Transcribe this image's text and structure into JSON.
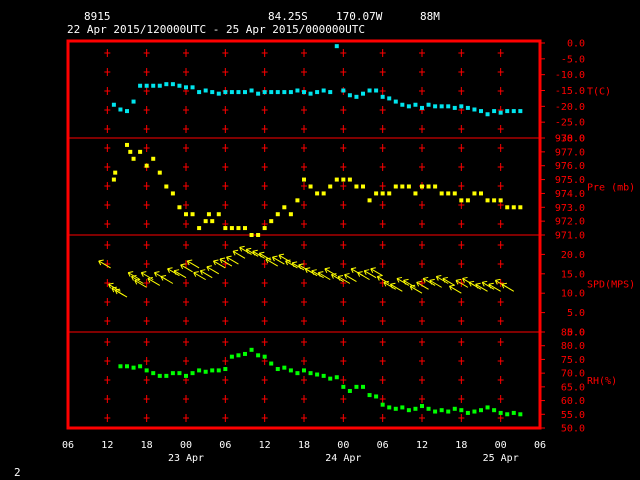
{
  "header": {
    "station_id": "8915",
    "latitude": "84.25S",
    "longitude": "170.07W",
    "elevation": "88M",
    "period": "22 Apr 2015/120000UTC - 25 Apr 2015/000000UTC"
  },
  "footer": {
    "page_number": "2"
  },
  "colors": {
    "background": "#000000",
    "frame": "#ff0000",
    "grid_marks": "#ff0000",
    "text": "#ffffff",
    "temperature": "#00e5ee",
    "pressure": "#ffff00",
    "wind": "#ffff00",
    "humidity": "#00ff00"
  },
  "chart_data": {
    "type": "scatter",
    "x_unit": "hours since 22 Apr 2015 06 UTC",
    "x_range": [
      0,
      72
    ],
    "x_tick_labels": [
      "06",
      "12",
      "18",
      "00",
      "06",
      "12",
      "18",
      "00",
      "06",
      "12",
      "18",
      "00",
      "06"
    ],
    "x_date_labels": [
      {
        "text": "23 Apr",
        "at_hour": 18
      },
      {
        "text": "24 Apr",
        "at_hour": 42
      },
      {
        "text": "25 Apr",
        "at_hour": 66
      }
    ],
    "panels": [
      {
        "name": "T(C)",
        "ylabel": "T(C)",
        "ylim": [
          -30,
          0
        ],
        "yticks": [
          "0.0",
          "-5.0",
          "-10.0",
          "-15.0",
          "-20.0",
          "-25.0",
          "-30.0"
        ],
        "x": [
          7,
          8,
          9,
          10,
          11,
          12,
          13,
          14,
          15,
          16,
          17,
          18,
          19,
          20,
          21,
          22,
          23,
          24,
          25,
          26,
          27,
          28,
          29,
          30,
          31,
          32,
          33,
          34,
          35,
          36,
          37,
          38,
          39,
          40,
          41,
          42,
          43,
          44,
          45,
          46,
          47,
          48,
          49,
          50,
          51,
          52,
          53,
          54,
          55,
          56,
          57,
          58,
          59,
          60,
          61,
          62,
          63,
          64,
          65,
          66,
          67,
          68,
          69
        ],
        "y": [
          -19.5,
          -21.0,
          -21.5,
          -18.5,
          -13.5,
          -13.5,
          -13.5,
          -13.5,
          -13.0,
          -13.0,
          -13.5,
          -14.0,
          -14.0,
          -15.5,
          -15.0,
          -15.5,
          -16.0,
          -15.5,
          -15.5,
          -15.5,
          -15.5,
          -15.0,
          -16.0,
          -15.5,
          -15.5,
          -15.5,
          -15.5,
          -15.5,
          -15.0,
          -15.5,
          -16.0,
          -15.5,
          -15.0,
          -15.5,
          -1.0,
          -15.0,
          -16.5,
          -17.0,
          -16.0,
          -15.0,
          -15.0,
          -17.0,
          -17.5,
          -18.5,
          -19.5,
          -20.0,
          -19.5,
          -20.5,
          -19.5,
          -20.0,
          -20.0,
          -20.0,
          -20.5,
          -20.0,
          -20.5,
          -21.0,
          -21.5,
          -22.5,
          -21.5,
          -22.0,
          -21.5,
          -21.5,
          -21.5
        ]
      },
      {
        "name": "Pre (mb)",
        "ylabel": "Pre (mb)",
        "ylim": [
          971,
          978
        ],
        "yticks": [
          "978.0",
          "977.0",
          "976.0",
          "975.0",
          "974.0",
          "973.0",
          "972.0",
          "971.0"
        ],
        "x": [
          7,
          7.2,
          9,
          9.5,
          10,
          11,
          12,
          13,
          14,
          15,
          16,
          17,
          18,
          19,
          20,
          21,
          21.5,
          22,
          23,
          24,
          25,
          26,
          27,
          28,
          29,
          30,
          31,
          32,
          33,
          34,
          35,
          36,
          37,
          38,
          39,
          40,
          41,
          42,
          43,
          44,
          45,
          46,
          47,
          48,
          49,
          50,
          51,
          52,
          53,
          54,
          55,
          56,
          57,
          58,
          59,
          60,
          61,
          62,
          63,
          64,
          65,
          66,
          67,
          68,
          69
        ],
        "y": [
          975.0,
          975.5,
          977.5,
          977.0,
          976.5,
          977.0,
          976.0,
          976.5,
          975.5,
          974.5,
          974.0,
          973.0,
          972.5,
          972.5,
          971.5,
          972.0,
          972.5,
          972.0,
          972.5,
          971.5,
          971.5,
          971.5,
          971.5,
          971.0,
          971.0,
          971.5,
          972.0,
          972.5,
          973.0,
          972.5,
          973.5,
          975.0,
          974.5,
          974.0,
          974.0,
          974.5,
          975.0,
          975.0,
          975.0,
          974.5,
          974.5,
          973.5,
          974.0,
          974.0,
          974.0,
          974.5,
          974.5,
          974.5,
          974.0,
          974.5,
          974.5,
          974.5,
          974.0,
          974.0,
          974.0,
          973.5,
          973.5,
          974.0,
          974.0,
          973.5,
          973.5,
          973.5,
          973.0,
          973.0,
          973.0
        ]
      },
      {
        "name": "SPD(MPS)",
        "ylabel": "SPD(MPS)",
        "ylim": [
          0,
          25
        ],
        "yticks": [
          "20.0",
          "15.0",
          "10.0",
          "5.0",
          "0.0"
        ],
        "x": [
          6.5,
          8,
          8.5,
          9,
          11,
          11.5,
          12,
          13,
          14,
          15,
          16,
          17,
          18,
          19,
          20,
          21,
          22,
          23,
          24,
          25,
          26,
          27,
          28,
          29,
          30,
          31,
          32,
          33,
          34,
          35,
          36,
          37,
          38,
          39,
          40,
          41,
          42,
          43,
          44,
          45,
          46,
          47,
          48,
          49,
          50,
          51,
          52,
          53,
          54,
          55,
          56,
          57,
          58,
          59,
          60,
          61,
          62,
          63,
          64,
          65,
          66,
          67,
          68
        ],
        "y": [
          16.5,
          10.5,
          9.5,
          9.0,
          13.5,
          12.5,
          11.5,
          13.5,
          12.0,
          13.5,
          12.5,
          14.5,
          14.0,
          15.5,
          16.5,
          13.5,
          14.0,
          15.0,
          16.5,
          17.0,
          17.5,
          19.0,
          20.0,
          19.5,
          19.0,
          18.5,
          17.0,
          17.5,
          18.0,
          16.5,
          16.0,
          15.5,
          14.5,
          14.0,
          13.5,
          14.5,
          13.0,
          12.5,
          13.0,
          14.5,
          13.5,
          14.0,
          14.5,
          12.5,
          11.0,
          10.5,
          12.0,
          11.5,
          10.0,
          11.0,
          12.0,
          11.5,
          12.5,
          12.0,
          10.0,
          11.5,
          12.0,
          11.0,
          10.5,
          11.0,
          10.5,
          11.5,
          10.5
        ],
        "direction": [
          45,
          45,
          45,
          45,
          45,
          45,
          45,
          45,
          45,
          45,
          45,
          45,
          45,
          45,
          45,
          45,
          45,
          45,
          45,
          45,
          45,
          45,
          45,
          45,
          45,
          45,
          45,
          45,
          45,
          45,
          45,
          45,
          45,
          45,
          45,
          45,
          45,
          45,
          45,
          45,
          45,
          45,
          45,
          45,
          45,
          45,
          45,
          45,
          45,
          45,
          45,
          45,
          45,
          45,
          45,
          45,
          45,
          45,
          45,
          45,
          45,
          45,
          45
        ]
      },
      {
        "name": "RH(%)",
        "ylabel": "RH(%)",
        "ylim": [
          50,
          85
        ],
        "yticks": [
          "85.0",
          "80.0",
          "75.0",
          "70.0",
          "65.0",
          "60.0",
          "55.0",
          "50.0"
        ],
        "x": [
          8,
          9,
          10,
          11,
          12,
          13,
          14,
          15,
          16,
          17,
          18,
          19,
          20,
          21,
          22,
          23,
          24,
          25,
          26,
          27,
          28,
          29,
          30,
          31,
          32,
          33,
          34,
          35,
          36,
          37,
          38,
          39,
          40,
          41,
          42,
          43,
          44,
          45,
          46,
          47,
          48,
          49,
          50,
          51,
          52,
          53,
          54,
          55,
          56,
          57,
          58,
          59,
          60,
          61,
          62,
          63,
          64,
          65,
          66,
          67,
          68,
          69
        ],
        "y": [
          72.5,
          72.5,
          72.0,
          72.5,
          71.0,
          70.0,
          69.0,
          69.0,
          70.0,
          70.0,
          69.0,
          70.0,
          71.0,
          70.5,
          71.0,
          71.0,
          71.5,
          76.0,
          76.5,
          77.0,
          78.5,
          76.5,
          76.0,
          73.5,
          71.5,
          72.0,
          71.0,
          70.0,
          71.0,
          70.0,
          69.5,
          69.0,
          68.0,
          68.5,
          65.0,
          63.5,
          65.0,
          65.0,
          62.0,
          61.5,
          58.5,
          57.5,
          57.0,
          57.5,
          56.5,
          57.0,
          58.0,
          57.0,
          56.0,
          56.5,
          56.0,
          57.0,
          56.5,
          55.5,
          56.0,
          56.5,
          57.5,
          56.5,
          55.5,
          55.0,
          55.5,
          55.0
        ]
      }
    ]
  }
}
